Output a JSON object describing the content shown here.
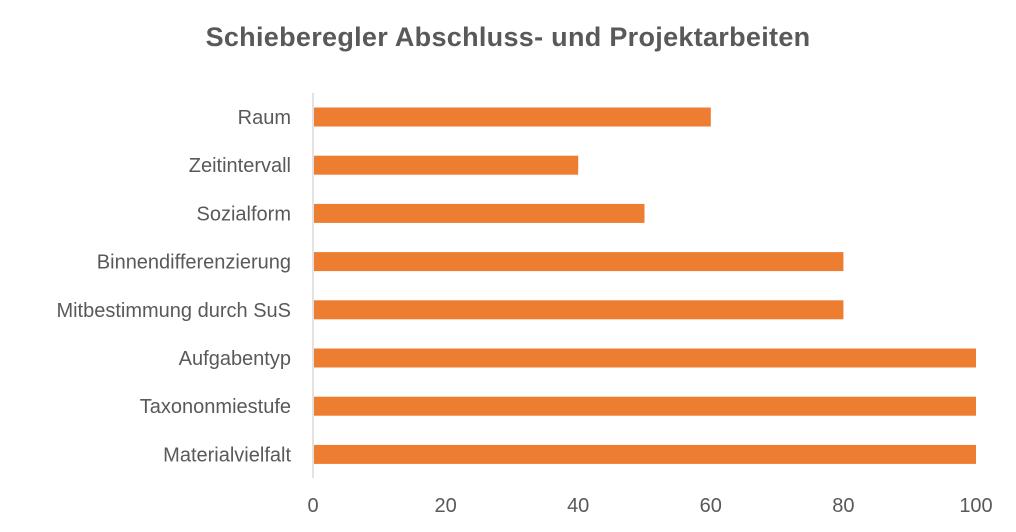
{
  "chart_data": {
    "type": "bar",
    "orientation": "horizontal",
    "title": "Schieberegler Abschluss- und Projektarbeiten",
    "categories": [
      "Raum",
      "Zeitintervall",
      "Sozialform",
      "Binnendifferenzierung",
      "Mitbestimmung durch SuS",
      "Aufgabentyp",
      "Taxononmiestufe",
      "Materialvielfalt"
    ],
    "values": [
      60,
      40,
      50,
      80,
      80,
      100,
      100,
      100
    ],
    "xlim": [
      0,
      100
    ],
    "xticks": [
      0,
      20,
      40,
      60,
      80,
      100
    ],
    "xlabel": "",
    "ylabel": "",
    "grid": false,
    "legend": "none",
    "bar_color": "#ED7D31"
  }
}
